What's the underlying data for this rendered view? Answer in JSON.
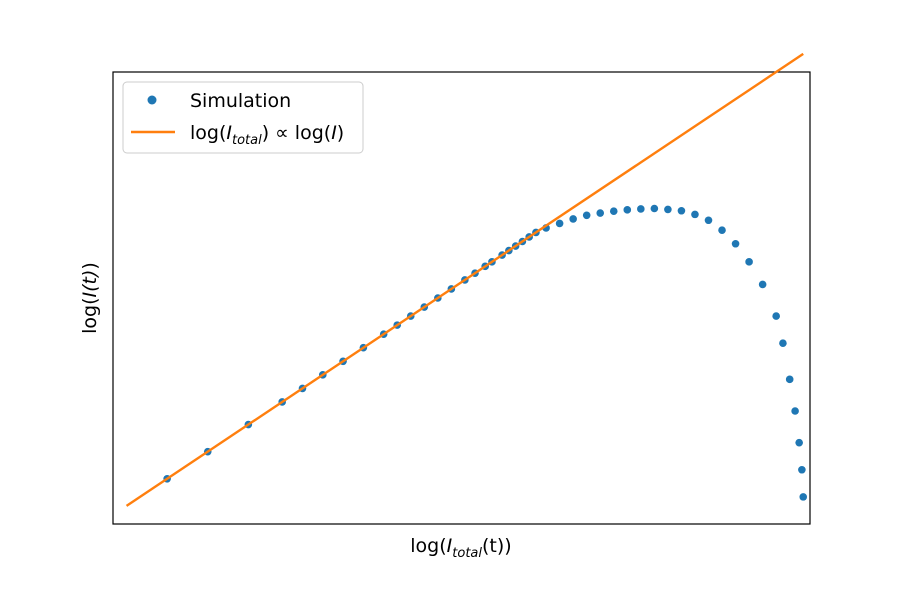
{
  "chart_data": {
    "type": "scatter",
    "x_range": [
      0.02,
      1.05
    ],
    "y_range": [
      0.0,
      1.0
    ],
    "x_ticks": false,
    "y_ticks": false,
    "grid": false,
    "legend_position": "upper-left",
    "xlabel": {
      "main": "log(",
      "italic": "I",
      "sub": "total",
      "after": "(t))"
    },
    "ylabel": {
      "main": "log(",
      "italic": "I(t)",
      "after": ")"
    },
    "series": [
      {
        "name": "Simulation",
        "kind": "markers",
        "color": "#1f77b4",
        "points": [
          [
            0.1,
            0.1
          ],
          [
            0.16,
            0.16
          ],
          [
            0.22,
            0.22
          ],
          [
            0.27,
            0.27
          ],
          [
            0.3,
            0.3
          ],
          [
            0.33,
            0.33
          ],
          [
            0.36,
            0.36
          ],
          [
            0.39,
            0.39
          ],
          [
            0.42,
            0.42
          ],
          [
            0.44,
            0.44
          ],
          [
            0.46,
            0.46
          ],
          [
            0.48,
            0.48
          ],
          [
            0.5,
            0.5
          ],
          [
            0.52,
            0.52
          ],
          [
            0.54,
            0.54
          ],
          [
            0.555,
            0.555
          ],
          [
            0.57,
            0.57
          ],
          [
            0.58,
            0.58
          ],
          [
            0.595,
            0.595
          ],
          [
            0.605,
            0.605
          ],
          [
            0.615,
            0.615
          ],
          [
            0.625,
            0.625
          ],
          [
            0.635,
            0.635
          ],
          [
            0.645,
            0.645
          ],
          [
            0.66,
            0.655
          ],
          [
            0.68,
            0.665
          ],
          [
            0.7,
            0.675
          ],
          [
            0.72,
            0.683
          ],
          [
            0.74,
            0.688
          ],
          [
            0.76,
            0.692
          ],
          [
            0.78,
            0.695
          ],
          [
            0.8,
            0.697
          ],
          [
            0.82,
            0.698
          ],
          [
            0.84,
            0.696
          ],
          [
            0.86,
            0.693
          ],
          [
            0.88,
            0.685
          ],
          [
            0.9,
            0.672
          ],
          [
            0.92,
            0.65
          ],
          [
            0.94,
            0.62
          ],
          [
            0.96,
            0.58
          ],
          [
            0.98,
            0.53
          ],
          [
            1.0,
            0.46
          ],
          [
            1.01,
            0.4
          ],
          [
            1.02,
            0.32
          ],
          [
            1.028,
            0.25
          ],
          [
            1.034,
            0.18
          ],
          [
            1.038,
            0.12
          ],
          [
            1.04,
            0.06
          ]
        ]
      },
      {
        "name": "",
        "legend_math": {
          "prefix": "log(",
          "italic": "I",
          "sub": "total",
          "mid": ") ∝ log(",
          "italic2": "I",
          "suffix": ")"
        },
        "kind": "line",
        "color": "#ff7f0e",
        "points": [
          [
            0.04,
            0.04
          ],
          [
            1.04,
            1.04
          ]
        ]
      }
    ]
  }
}
